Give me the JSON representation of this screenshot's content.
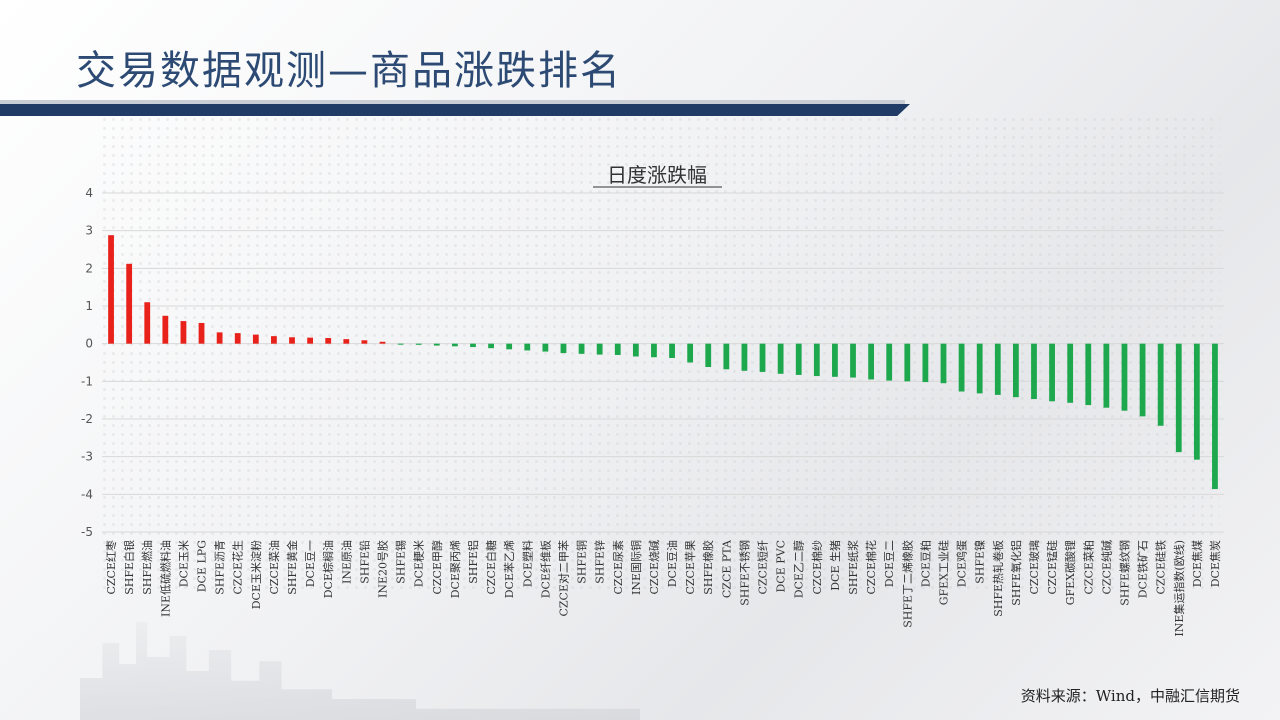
{
  "header": {
    "title": "交易数据观测—商品涨跌排名"
  },
  "footer": {
    "source": "资料来源：Wind，中融汇信期货"
  },
  "colors": {
    "up": "#e8221b",
    "down": "#1ea84e",
    "grid": "#d8d8d8",
    "title_bar": "#1f3b66"
  },
  "chart_data": {
    "type": "bar",
    "title": "日度涨跌幅",
    "xlabel": "",
    "ylabel": "",
    "ylim": [
      -5,
      4
    ],
    "yticks": [
      4,
      3,
      2,
      1,
      0,
      -1,
      -2,
      -3,
      -4,
      -5
    ],
    "grid": true,
    "categories": [
      "CZCE红枣",
      "SHFE白银",
      "SHFE燃油",
      "INE低硫燃料油",
      "DCE玉米",
      "DCE LPG",
      "SHFE沥青",
      "CZCE花生",
      "DCE玉米淀粉",
      "CZCE菜油",
      "SHFE黄金",
      "DCE豆一",
      "DCE棕榈油",
      "INE原油",
      "SHFE铅",
      "INE20号胶",
      "SHFE锡",
      "DCE粳米",
      "CZCE甲醇",
      "DCE聚丙烯",
      "SHFE铝",
      "CZCE白糖",
      "DCE苯乙烯",
      "DCE塑料",
      "DCE纤维板",
      "CZCE对二甲苯",
      "SHFE铜",
      "SHFE锌",
      "CZCE尿素",
      "INE国际铜",
      "CZCE烧碱",
      "DCE豆油",
      "CZCE苹果",
      "SHFE橡胶",
      "CZCE PTA",
      "SHFE不锈钢",
      "CZCE短纤",
      "DCE PVC",
      "DCE乙二醇",
      "CZCE棉纱",
      "DCE 生猪",
      "SHFE纸浆",
      "CZCE棉花",
      "DCE豆二",
      "SHFE丁二烯橡胶",
      "DCE豆粕",
      "GFEX工业硅",
      "DCE鸡蛋",
      "SHFE镍",
      "SHFE热轧卷板",
      "SHFE氧化铝",
      "CZCE玻璃",
      "CZCE锰硅",
      "GFEX碳酸锂",
      "CZCE菜粕",
      "CZCE纯碱",
      "SHFE螺纹钢",
      "DCE铁矿石",
      "CZCE硅铁",
      "INE集运指数(欧线)",
      "DCE焦煤",
      "DCE焦炭"
    ],
    "values": [
      2.88,
      2.12,
      1.1,
      0.74,
      0.6,
      0.55,
      0.3,
      0.28,
      0.24,
      0.2,
      0.17,
      0.16,
      0.15,
      0.12,
      0.09,
      0.05,
      -0.02,
      -0.03,
      -0.05,
      -0.07,
      -0.09,
      -0.12,
      -0.15,
      -0.18,
      -0.21,
      -0.25,
      -0.27,
      -0.29,
      -0.3,
      -0.34,
      -0.36,
      -0.38,
      -0.5,
      -0.62,
      -0.68,
      -0.72,
      -0.75,
      -0.8,
      -0.83,
      -0.86,
      -0.88,
      -0.9,
      -0.95,
      -0.98,
      -1.0,
      -1.02,
      -1.05,
      -1.27,
      -1.32,
      -1.36,
      -1.42,
      -1.47,
      -1.53,
      -1.57,
      -1.63,
      -1.7,
      -1.78,
      -1.93,
      -2.18,
      -2.88,
      -3.08,
      -3.86
    ]
  }
}
